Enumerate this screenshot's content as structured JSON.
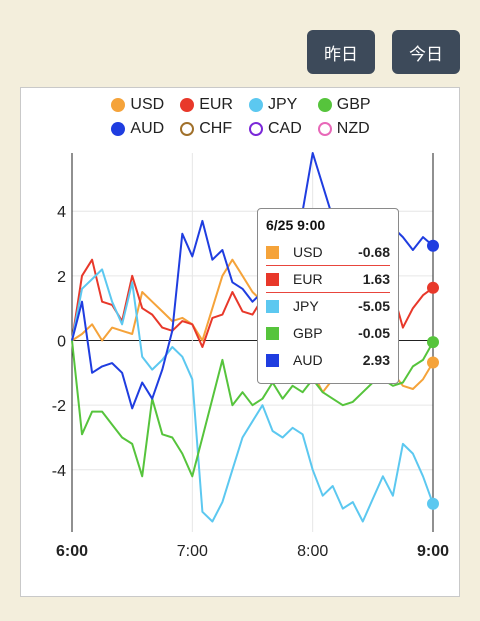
{
  "buttons": {
    "yesterday": "昨日",
    "today": "今日"
  },
  "legend": [
    {
      "label": "USD",
      "color": "#f5a33a",
      "filled": true
    },
    {
      "label": "EUR",
      "color": "#e8382a",
      "filled": true
    },
    {
      "label": "JPY",
      "color": "#5cc8f0",
      "filled": true
    },
    {
      "label": "GBP",
      "color": "#56c43c",
      "filled": true
    },
    {
      "label": "AUD",
      "color": "#1f3de0",
      "filled": true
    },
    {
      "label": "CHF",
      "color": "#a0702a",
      "filled": false
    },
    {
      "label": "CAD",
      "color": "#7a28d8",
      "filled": false
    },
    {
      "label": "NZD",
      "color": "#e868b8",
      "filled": false
    }
  ],
  "tooltip": {
    "title": "6/25 9:00",
    "rows": [
      {
        "name": "USD",
        "value": "-0.68",
        "color": "#f5a33a"
      },
      {
        "name": "EUR",
        "value": "1.63",
        "color": "#e8382a"
      },
      {
        "name": "JPY",
        "value": "-5.05",
        "color": "#5cc8f0"
      },
      {
        "name": "GBP",
        "value": "-0.05",
        "color": "#56c43c"
      },
      {
        "name": "AUD",
        "value": "2.93",
        "color": "#1f3de0"
      }
    ]
  },
  "chart_data": {
    "type": "line",
    "title": "",
    "xlabel": "",
    "ylabel": "",
    "x_ticks": [
      "6:00",
      "7:00",
      "8:00",
      "9:00"
    ],
    "x_range": [
      0,
      180
    ],
    "y_ticks": [
      -4,
      -2,
      0,
      2,
      4
    ],
    "ylim": [
      -5.8,
      5.8
    ],
    "grid": true,
    "series": [
      {
        "name": "USD",
        "color": "#f5a33a",
        "points": [
          [
            0,
            0
          ],
          [
            5,
            0.2
          ],
          [
            10,
            0.5
          ],
          [
            15,
            0
          ],
          [
            20,
            0.4
          ],
          [
            25,
            0.3
          ],
          [
            30,
            0.2
          ],
          [
            35,
            1.5
          ],
          [
            40,
            1.2
          ],
          [
            45,
            0.9
          ],
          [
            50,
            0.6
          ],
          [
            55,
            0.7
          ],
          [
            60,
            0.5
          ],
          [
            65,
            0
          ],
          [
            70,
            1
          ],
          [
            75,
            2
          ],
          [
            80,
            2.5
          ],
          [
            85,
            2
          ],
          [
            90,
            1.5
          ],
          [
            95,
            1.2
          ],
          [
            100,
            1
          ],
          [
            105,
            0.3
          ],
          [
            110,
            0.2
          ],
          [
            115,
            -0.5
          ],
          [
            120,
            -1
          ],
          [
            125,
            -1.6
          ],
          [
            130,
            -1.2
          ],
          [
            135,
            -1
          ],
          [
            140,
            -0.7
          ],
          [
            145,
            -0.8
          ],
          [
            150,
            -0.3
          ],
          [
            155,
            -0.5
          ],
          [
            160,
            -1
          ],
          [
            165,
            -1.4
          ],
          [
            170,
            -1.5
          ],
          [
            175,
            -1.2
          ],
          [
            180,
            -0.68
          ]
        ]
      },
      {
        "name": "EUR",
        "color": "#e8382a",
        "points": [
          [
            0,
            0
          ],
          [
            5,
            2
          ],
          [
            10,
            2.5
          ],
          [
            15,
            1.2
          ],
          [
            20,
            1.1
          ],
          [
            25,
            0.6
          ],
          [
            30,
            2
          ],
          [
            35,
            1
          ],
          [
            40,
            0.8
          ],
          [
            45,
            0.4
          ],
          [
            50,
            0.3
          ],
          [
            55,
            0.6
          ],
          [
            60,
            0.5
          ],
          [
            65,
            -0.2
          ],
          [
            70,
            0.7
          ],
          [
            75,
            0.8
          ],
          [
            80,
            1.5
          ],
          [
            85,
            0.9
          ],
          [
            90,
            0.8
          ],
          [
            95,
            1.3
          ],
          [
            100,
            1
          ],
          [
            105,
            1
          ],
          [
            110,
            1.2
          ],
          [
            115,
            1.3
          ],
          [
            120,
            1
          ],
          [
            125,
            0.8
          ],
          [
            130,
            0.5
          ],
          [
            135,
            1
          ],
          [
            140,
            0.6
          ],
          [
            145,
            1.2
          ],
          [
            150,
            1
          ],
          [
            155,
            1.3
          ],
          [
            160,
            1.5
          ],
          [
            165,
            0.4
          ],
          [
            170,
            1
          ],
          [
            175,
            1.4
          ],
          [
            180,
            1.63
          ]
        ]
      },
      {
        "name": "JPY",
        "color": "#5cc8f0",
        "points": [
          [
            0,
            0
          ],
          [
            5,
            1.6
          ],
          [
            10,
            1.9
          ],
          [
            15,
            2.2
          ],
          [
            20,
            1.2
          ],
          [
            25,
            0.5
          ],
          [
            30,
            1.8
          ],
          [
            35,
            -0.5
          ],
          [
            40,
            -0.9
          ],
          [
            45,
            -0.6
          ],
          [
            50,
            -0.2
          ],
          [
            55,
            -0.5
          ],
          [
            60,
            -1.2
          ],
          [
            65,
            -5.3
          ],
          [
            70,
            -5.6
          ],
          [
            75,
            -5
          ],
          [
            80,
            -4
          ],
          [
            85,
            -3
          ],
          [
            90,
            -2.5
          ],
          [
            95,
            -2
          ],
          [
            100,
            -2.8
          ],
          [
            105,
            -3
          ],
          [
            110,
            -2.7
          ],
          [
            115,
            -2.9
          ],
          [
            120,
            -4
          ],
          [
            125,
            -4.8
          ],
          [
            130,
            -4.5
          ],
          [
            135,
            -5.2
          ],
          [
            140,
            -5
          ],
          [
            145,
            -5.6
          ],
          [
            150,
            -4.9
          ],
          [
            155,
            -4.2
          ],
          [
            160,
            -4.8
          ],
          [
            165,
            -3.2
          ],
          [
            170,
            -3.5
          ],
          [
            175,
            -4.2
          ],
          [
            180,
            -5.05
          ]
        ]
      },
      {
        "name": "GBP",
        "color": "#56c43c",
        "points": [
          [
            0,
            0
          ],
          [
            5,
            -2.9
          ],
          [
            10,
            -2.2
          ],
          [
            15,
            -2.2
          ],
          [
            20,
            -2.6
          ],
          [
            25,
            -3
          ],
          [
            30,
            -3.2
          ],
          [
            35,
            -4.2
          ],
          [
            40,
            -1.8
          ],
          [
            45,
            -2.9
          ],
          [
            50,
            -3
          ],
          [
            55,
            -3.5
          ],
          [
            60,
            -4.2
          ],
          [
            65,
            -3
          ],
          [
            70,
            -1.8
          ],
          [
            75,
            -0.6
          ],
          [
            80,
            -2
          ],
          [
            85,
            -1.6
          ],
          [
            90,
            -2
          ],
          [
            95,
            -1.8
          ],
          [
            100,
            -1.3
          ],
          [
            105,
            -1.8
          ],
          [
            110,
            -1.4
          ],
          [
            115,
            -1.6
          ],
          [
            120,
            -1.2
          ],
          [
            125,
            -1.6
          ],
          [
            130,
            -1.8
          ],
          [
            135,
            -2
          ],
          [
            140,
            -1.9
          ],
          [
            145,
            -1.6
          ],
          [
            150,
            -1.3
          ],
          [
            155,
            -1.2
          ],
          [
            160,
            -1.4
          ],
          [
            165,
            -1.3
          ],
          [
            170,
            -0.8
          ],
          [
            175,
            -0.6
          ],
          [
            180,
            -0.05
          ]
        ]
      },
      {
        "name": "AUD",
        "color": "#1f3de0",
        "points": [
          [
            0,
            0
          ],
          [
            5,
            1.2
          ],
          [
            10,
            -1
          ],
          [
            15,
            -0.8
          ],
          [
            20,
            -0.7
          ],
          [
            25,
            -1
          ],
          [
            30,
            -2.1
          ],
          [
            35,
            -1.3
          ],
          [
            40,
            -1.8
          ],
          [
            45,
            -0.9
          ],
          [
            50,
            0.3
          ],
          [
            55,
            3.3
          ],
          [
            60,
            2.6
          ],
          [
            65,
            3.7
          ],
          [
            70,
            2.5
          ],
          [
            75,
            2.8
          ],
          [
            80,
            1.8
          ],
          [
            85,
            1.6
          ],
          [
            90,
            1.2
          ],
          [
            95,
            1.5
          ],
          [
            100,
            2
          ],
          [
            105,
            2.4
          ],
          [
            110,
            3.2
          ],
          [
            115,
            4
          ],
          [
            120,
            5.8
          ],
          [
            125,
            4.8
          ],
          [
            130,
            3.8
          ],
          [
            135,
            3.2
          ],
          [
            140,
            3.2
          ],
          [
            145,
            3
          ],
          [
            150,
            2.5
          ],
          [
            155,
            3.2
          ],
          [
            160,
            3.5
          ],
          [
            165,
            3.2
          ],
          [
            170,
            2.8
          ],
          [
            175,
            3.2
          ],
          [
            180,
            2.93
          ]
        ]
      }
    ],
    "cursor_x": 180,
    "tooltip_anchor": "9:00"
  }
}
